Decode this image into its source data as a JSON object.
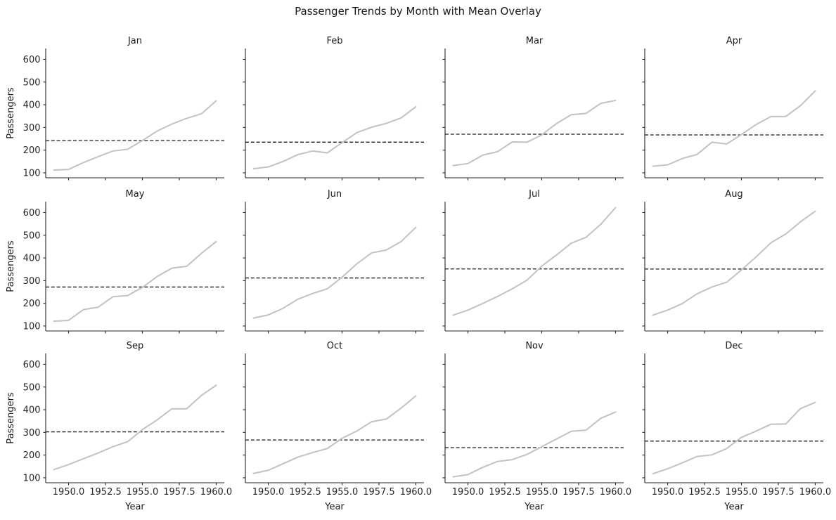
{
  "figure": {
    "title": "Passenger Trends by Month with Mean Overlay"
  },
  "chart_data": {
    "type": "line",
    "title": "Passenger Trends by Month with Mean Overlay",
    "xlabel": "Year",
    "ylabel": "Passengers",
    "x": [
      1949,
      1950,
      1951,
      1952,
      1953,
      1954,
      1955,
      1956,
      1957,
      1958,
      1959,
      1960
    ],
    "xtick_labels": [
      "1950.0",
      "1952.5",
      "1955.0",
      "1957.5",
      "1960.0"
    ],
    "xtick_values": [
      1950,
      1952.5,
      1955,
      1957.5,
      1960
    ],
    "ytick_labels": [
      "100",
      "200",
      "300",
      "400",
      "500",
      "600"
    ],
    "ytick_values": [
      100,
      200,
      300,
      400,
      500,
      600
    ],
    "xlim": [
      1948.45,
      1960.55
    ],
    "ylim": [
      78.1,
      647.9
    ],
    "grid": false,
    "legend": "none",
    "line_color": "#c2c2c2",
    "mean_line_color": "#1a1a1a",
    "mean_line_style": "dashed",
    "facets": [
      {
        "month": "Jan",
        "values": [
          112,
          115,
          145,
          171,
          196,
          204,
          242,
          284,
          315,
          340,
          360,
          417
        ],
        "mean": 241.75
      },
      {
        "month": "Feb",
        "values": [
          118,
          126,
          150,
          180,
          196,
          188,
          233,
          277,
          301,
          318,
          342,
          391
        ],
        "mean": 235.0
      },
      {
        "month": "Mar",
        "values": [
          132,
          141,
          178,
          193,
          236,
          235,
          267,
          317,
          356,
          362,
          406,
          419
        ],
        "mean": 270.17
      },
      {
        "month": "Apr",
        "values": [
          129,
          135,
          163,
          181,
          235,
          227,
          269,
          313,
          348,
          348,
          396,
          461
        ],
        "mean": 267.08
      },
      {
        "month": "May",
        "values": [
          121,
          125,
          172,
          183,
          229,
          234,
          270,
          318,
          355,
          363,
          420,
          472
        ],
        "mean": 271.83
      },
      {
        "month": "Jun",
        "values": [
          135,
          149,
          178,
          218,
          243,
          264,
          315,
          374,
          422,
          435,
          472,
          535
        ],
        "mean": 311.67
      },
      {
        "month": "Jul",
        "values": [
          148,
          170,
          199,
          230,
          264,
          302,
          364,
          413,
          465,
          491,
          548,
          622
        ],
        "mean": 351.33
      },
      {
        "month": "Aug",
        "values": [
          148,
          170,
          199,
          242,
          272,
          293,
          347,
          405,
          467,
          505,
          559,
          606
        ],
        "mean": 351.08
      },
      {
        "month": "Sep",
        "values": [
          136,
          158,
          184,
          209,
          237,
          259,
          312,
          355,
          404,
          404,
          463,
          508
        ],
        "mean": 302.42
      },
      {
        "month": "Oct",
        "values": [
          119,
          133,
          162,
          191,
          211,
          229,
          274,
          306,
          347,
          359,
          407,
          461
        ],
        "mean": 266.58
      },
      {
        "month": "Nov",
        "values": [
          104,
          114,
          146,
          172,
          180,
          203,
          237,
          271,
          305,
          310,
          362,
          390
        ],
        "mean": 232.83
      },
      {
        "month": "Dec",
        "values": [
          118,
          140,
          166,
          194,
          201,
          229,
          278,
          306,
          336,
          337,
          405,
          432
        ],
        "mean": 261.83
      }
    ]
  }
}
